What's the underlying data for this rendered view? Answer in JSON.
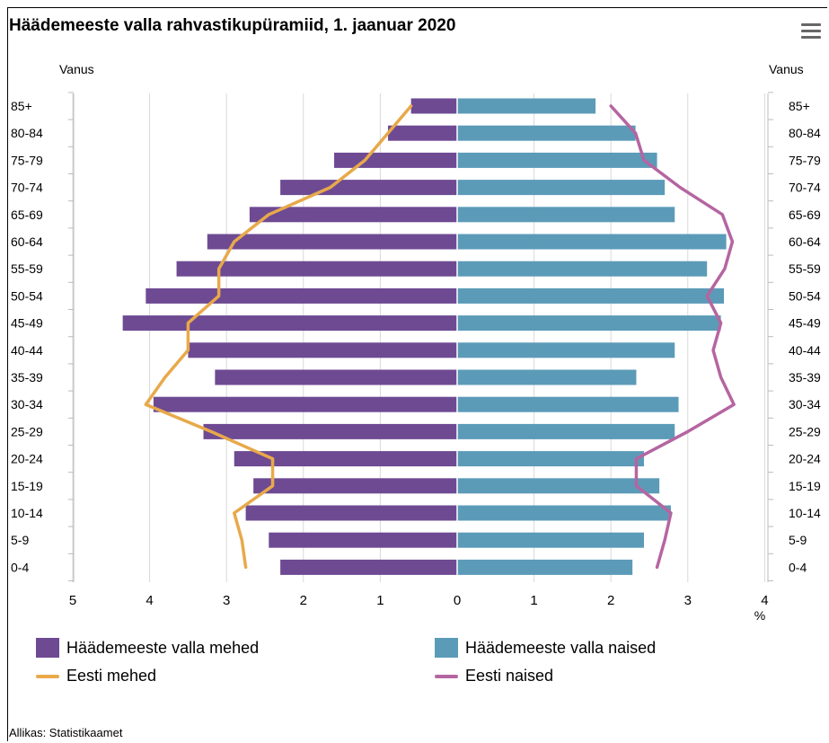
{
  "title": "Häädemeeste valla rahvastikupüramiid, 1. jaanuar 2020",
  "source": "Allikas: Statistikaamet",
  "menu_icon": "hamburger-menu-icon",
  "colors": {
    "men_bar": "#6e4a93",
    "women_bar": "#5b9bb8",
    "men_line": "#e8a94a",
    "women_line": "#b565a1",
    "grid": "#d9d9d9"
  },
  "chart_data": {
    "type": "bar",
    "orientation": "horizontal-pyramid",
    "categories": [
      "85+",
      "80-84",
      "75-79",
      "70-74",
      "65-69",
      "60-64",
      "55-59",
      "50-54",
      "45-49",
      "40-44",
      "35-39",
      "30-34",
      "25-29",
      "20-24",
      "15-19",
      "10-14",
      "5-9",
      "0-4"
    ],
    "y_axis_label": "Vanus",
    "x_unit": "%",
    "x_ticks_left": [
      "5",
      "4",
      "3",
      "2",
      "1",
      "0"
    ],
    "x_ticks_right": [
      "1",
      "2",
      "3",
      "4"
    ],
    "xlim": [
      -5,
      4
    ],
    "series": [
      {
        "name": "Häädemeeste valla mehed",
        "type": "bar",
        "side": "left",
        "values": [
          0.6,
          0.9,
          1.6,
          2.3,
          2.7,
          3.25,
          3.65,
          4.05,
          4.35,
          3.5,
          3.15,
          3.95,
          3.3,
          2.9,
          2.65,
          2.75,
          2.45,
          2.3
        ]
      },
      {
        "name": "Häädemeeste valla naised",
        "type": "bar",
        "side": "right",
        "values": [
          1.8,
          2.32,
          2.6,
          2.7,
          2.83,
          3.5,
          3.25,
          3.47,
          3.43,
          2.83,
          2.33,
          2.88,
          2.83,
          2.43,
          2.63,
          2.78,
          2.43,
          2.28
        ]
      },
      {
        "name": "Eesti mehed",
        "type": "line",
        "side": "left",
        "values": [
          0.6,
          0.9,
          1.2,
          1.65,
          2.45,
          2.9,
          3.1,
          3.1,
          3.5,
          3.5,
          3.8,
          4.05,
          3.2,
          2.4,
          2.4,
          2.9,
          2.8,
          2.75
        ]
      },
      {
        "name": "Eesti naised",
        "type": "line",
        "side": "right",
        "values": [
          2.0,
          2.32,
          2.43,
          2.9,
          3.45,
          3.58,
          3.48,
          3.25,
          3.43,
          3.33,
          3.43,
          3.6,
          3.0,
          2.33,
          2.33,
          2.78,
          2.7,
          2.6
        ]
      }
    ],
    "grid": true,
    "legend_position": "bottom"
  }
}
